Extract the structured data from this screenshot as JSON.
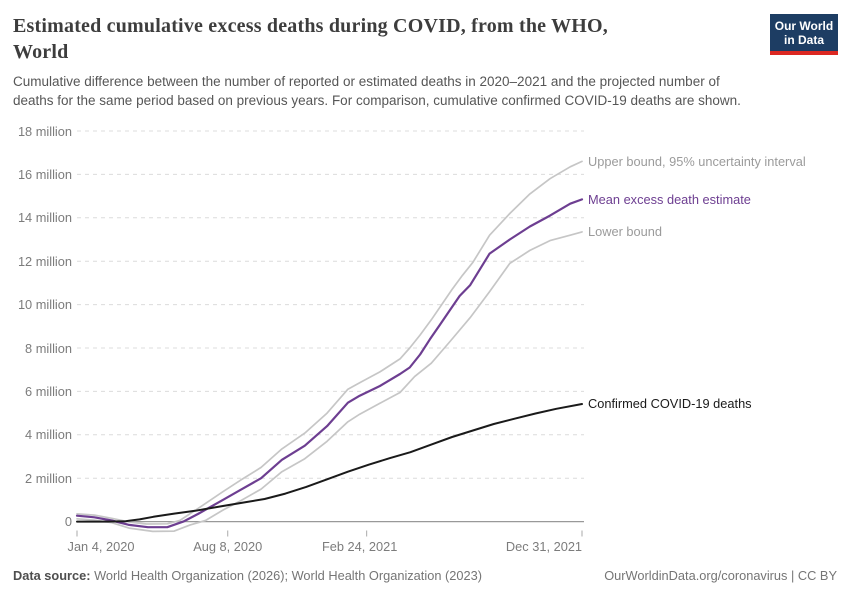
{
  "header": {
    "title": "Estimated cumulative excess deaths during COVID, from the WHO,\nWorld",
    "subtitle": "Cumulative difference between the number of reported or estimated deaths in 2020–2021 and the projected number of\ndeaths for the same period based on previous years. For comparison, cumulative confirmed COVID-19 deaths are shown.",
    "logo": {
      "text": "Our World\nin Data",
      "bg_color": "#1d3d63",
      "underline_color": "#dc2822",
      "text_color": "#ffffff"
    }
  },
  "footer": {
    "source_label": "Data source:",
    "source_text": " World Health Organization (2026); World Health Organization (2023)",
    "license_text": "OurWorldinData.org/coronavirus | CC BY"
  },
  "chart_data": {
    "type": "line",
    "title": "Estimated cumulative excess deaths during COVID, from the WHO, World",
    "xlabel": "",
    "ylabel": "",
    "unit": "million deaths",
    "grid": "dashed-horizontal",
    "legend_position": "end-of-line-labels",
    "x_axis": {
      "kind": "date",
      "xlim_days": [
        0,
        727
      ],
      "ticks": [
        {
          "label": "Jan 4, 2020",
          "day": 0
        },
        {
          "label": "Aug 8, 2020",
          "day": 217
        },
        {
          "label": "Feb 24, 2021",
          "day": 417
        },
        {
          "label": "Dec 31, 2021",
          "day": 727
        }
      ]
    },
    "y_axis": {
      "ylim": [
        -0.6,
        18
      ],
      "ticks": [
        {
          "label": "0",
          "value": 0
        },
        {
          "label": "2 million",
          "value": 2
        },
        {
          "label": "4 million",
          "value": 4
        },
        {
          "label": "6 million",
          "value": 6
        },
        {
          "label": "8 million",
          "value": 8
        },
        {
          "label": "10 million",
          "value": 10
        },
        {
          "label": "12 million",
          "value": 12
        },
        {
          "label": "14 million",
          "value": 14
        },
        {
          "label": "16 million",
          "value": 16
        },
        {
          "label": "18 million",
          "value": 18
        }
      ]
    },
    "series": [
      {
        "name": "Upper bound, 95% uncertainty interval",
        "color": "#c6c6c6",
        "label_color": "#9b9b9b",
        "width": 1.7,
        "points": [
          [
            0,
            0.36
          ],
          [
            25,
            0.3
          ],
          [
            50,
            0.15
          ],
          [
            75,
            -0.02
          ],
          [
            100,
            -0.11
          ],
          [
            130,
            -0.1
          ],
          [
            148,
            0.05
          ],
          [
            174,
            0.6
          ],
          [
            210,
            1.38
          ],
          [
            235,
            1.9
          ],
          [
            265,
            2.5
          ],
          [
            295,
            3.35
          ],
          [
            328,
            4.08
          ],
          [
            360,
            5.0
          ],
          [
            390,
            6.1
          ],
          [
            407,
            6.4
          ],
          [
            436,
            6.9
          ],
          [
            465,
            7.5
          ],
          [
            479,
            8.0
          ],
          [
            494,
            8.6
          ],
          [
            510,
            9.3
          ],
          [
            525,
            10.0
          ],
          [
            540,
            10.7
          ],
          [
            555,
            11.35
          ],
          [
            570,
            11.95
          ],
          [
            594,
            13.2
          ],
          [
            623,
            14.2
          ],
          [
            652,
            15.1
          ],
          [
            681,
            15.8
          ],
          [
            710,
            16.35
          ],
          [
            727,
            16.6
          ]
        ]
      },
      {
        "name": "Lower bound",
        "color": "#c6c6c6",
        "label_color": "#9b9b9b",
        "width": 1.7,
        "points": [
          [
            0,
            0.13
          ],
          [
            25,
            0.07
          ],
          [
            50,
            -0.05
          ],
          [
            75,
            -0.3
          ],
          [
            109,
            -0.45
          ],
          [
            140,
            -0.44
          ],
          [
            163,
            -0.15
          ],
          [
            185,
            0.05
          ],
          [
            210,
            0.53
          ],
          [
            235,
            0.95
          ],
          [
            265,
            1.5
          ],
          [
            295,
            2.3
          ],
          [
            328,
            2.9
          ],
          [
            360,
            3.7
          ],
          [
            390,
            4.6
          ],
          [
            407,
            4.95
          ],
          [
            436,
            5.45
          ],
          [
            465,
            5.95
          ],
          [
            486,
            6.68
          ],
          [
            510,
            7.3
          ],
          [
            537,
            8.3
          ],
          [
            566,
            9.4
          ],
          [
            594,
            10.6
          ],
          [
            623,
            11.9
          ],
          [
            652,
            12.5
          ],
          [
            681,
            12.95
          ],
          [
            710,
            13.2
          ],
          [
            727,
            13.35
          ]
        ]
      },
      {
        "name": "Mean excess death estimate",
        "color": "#6d3e91",
        "label_color": "#6d3e91",
        "width": 2.2,
        "points": [
          [
            0,
            0.27
          ],
          [
            25,
            0.2
          ],
          [
            50,
            0.05
          ],
          [
            75,
            -0.15
          ],
          [
            102,
            -0.26
          ],
          [
            130,
            -0.26
          ],
          [
            153,
            0
          ],
          [
            174,
            0.35
          ],
          [
            210,
            1.0
          ],
          [
            235,
            1.45
          ],
          [
            265,
            2.0
          ],
          [
            295,
            2.85
          ],
          [
            328,
            3.5
          ],
          [
            360,
            4.4
          ],
          [
            390,
            5.48
          ],
          [
            407,
            5.8
          ],
          [
            436,
            6.25
          ],
          [
            465,
            6.8
          ],
          [
            479,
            7.1
          ],
          [
            494,
            7.7
          ],
          [
            508,
            8.4
          ],
          [
            522,
            9.05
          ],
          [
            537,
            9.75
          ],
          [
            551,
            10.4
          ],
          [
            566,
            10.9
          ],
          [
            594,
            12.35
          ],
          [
            623,
            13.0
          ],
          [
            652,
            13.6
          ],
          [
            681,
            14.1
          ],
          [
            710,
            14.65
          ],
          [
            727,
            14.85
          ]
        ]
      },
      {
        "name": "Confirmed COVID-19 deaths",
        "color": "#1a1a1a",
        "label_color": "#1a1a1a",
        "width": 2.0,
        "points": [
          [
            0,
            0
          ],
          [
            40,
            0.001
          ],
          [
            70,
            0.02
          ],
          [
            90,
            0.1
          ],
          [
            110,
            0.22
          ],
          [
            140,
            0.37
          ],
          [
            170,
            0.5
          ],
          [
            210,
            0.72
          ],
          [
            240,
            0.88
          ],
          [
            270,
            1.04
          ],
          [
            300,
            1.29
          ],
          [
            330,
            1.6
          ],
          [
            360,
            1.95
          ],
          [
            390,
            2.3
          ],
          [
            420,
            2.62
          ],
          [
            450,
            2.92
          ],
          [
            480,
            3.2
          ],
          [
            510,
            3.55
          ],
          [
            540,
            3.9
          ],
          [
            570,
            4.2
          ],
          [
            600,
            4.5
          ],
          [
            630,
            4.74
          ],
          [
            660,
            4.98
          ],
          [
            690,
            5.2
          ],
          [
            727,
            5.42
          ]
        ]
      }
    ],
    "style_colors": {
      "gridline": "#dcdcdc",
      "zero_line": "#999999",
      "tick_mark": "#aaaaaa",
      "axis_text": "#7c7c7c"
    }
  }
}
